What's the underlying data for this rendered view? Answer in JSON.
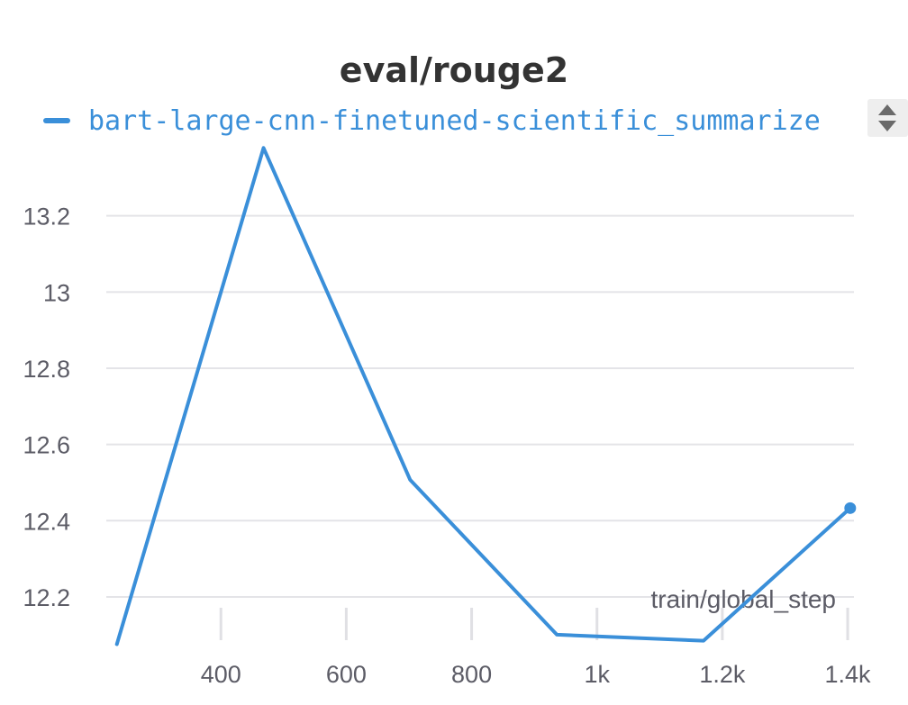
{
  "chart_data": {
    "type": "line",
    "title": "eval/rouge2",
    "xlabel": "train/global_step",
    "ylabel": "",
    "xlim": [
      220,
      1410
    ],
    "ylim": [
      12.07,
      13.4
    ],
    "y_ticks": [
      {
        "value": 12.2,
        "label": "12.2"
      },
      {
        "value": 12.4,
        "label": "12.4"
      },
      {
        "value": 12.6,
        "label": "12.6"
      },
      {
        "value": 12.8,
        "label": "12.8"
      },
      {
        "value": 13.0,
        "label": "13"
      },
      {
        "value": 13.2,
        "label": "13.2"
      }
    ],
    "x_ticks": [
      {
        "value": 400,
        "label": "400"
      },
      {
        "value": 600,
        "label": "600"
      },
      {
        "value": 800,
        "label": "800"
      },
      {
        "value": 1000,
        "label": "1k"
      },
      {
        "value": 1200,
        "label": "1.2k"
      },
      {
        "value": 1400,
        "label": "1.4k"
      }
    ],
    "grid": true,
    "legend_position": "top-left",
    "series": [
      {
        "name": "bart-large-cnn-finetuned-scientific_summarize",
        "color": "#3a8fd9",
        "x": [
          234,
          468,
          702,
          936,
          1170,
          1404
        ],
        "y": [
          12.076,
          13.378,
          12.507,
          12.101,
          12.085,
          12.433
        ]
      }
    ]
  },
  "legend_scroll_icon": "up-down-arrows-icon"
}
